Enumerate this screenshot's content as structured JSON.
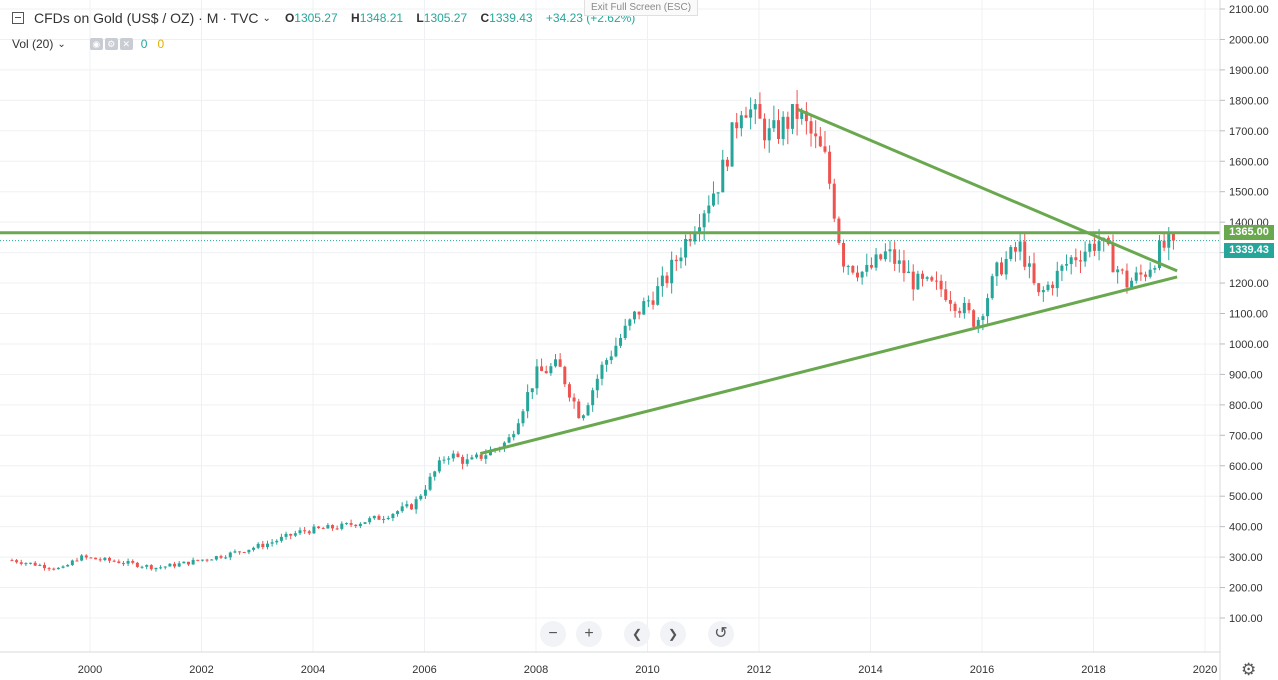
{
  "header": {
    "title": "CFDs on Gold (US$ / OZ) · M · TVC",
    "ohlc": {
      "o_key": "O",
      "o": "1305.27",
      "h_key": "H",
      "h": "1348.21",
      "l_key": "L",
      "l": "1305.27",
      "c_key": "C",
      "c": "1339.43",
      "change": "+34.23 (+2.62%)"
    }
  },
  "volume_legend": {
    "label": "Vol (20)",
    "value1": "0",
    "value2": "0"
  },
  "exit_fullscreen": "Exit Full Screen (ESC)",
  "nav": {
    "zoom_out": "−",
    "zoom_in": "+",
    "scroll_left": "❮",
    "scroll_right": "❯",
    "reset": "↺"
  },
  "price_tags": {
    "resistance": "1365.00",
    "last": "1339.43"
  },
  "colors": {
    "up": "#26a69a",
    "down": "#ef5350",
    "trendline": "#6aa84f",
    "axis": "#d5d8dc"
  },
  "icons": {
    "settings": "gear-icon",
    "collapse": "minus-square-icon"
  },
  "chart_data": {
    "type": "candlestick",
    "title": "CFDs on Gold (US$ / OZ)",
    "interval": "M",
    "ylim": [
      100,
      2100
    ],
    "yticks": [
      "100.00",
      "200.00",
      "300.00",
      "400.00",
      "500.00",
      "600.00",
      "700.00",
      "800.00",
      "900.00",
      "1000.00",
      "1100.00",
      "1200.00",
      "1300.00",
      "1400.00",
      "1500.00",
      "1600.00",
      "1700.00",
      "1800.00",
      "1900.00",
      "2000.00",
      "2100.00"
    ],
    "xticks": [
      "2000",
      "2002",
      "2004",
      "2006",
      "2008",
      "2010",
      "2012",
      "2014",
      "2016",
      "2018",
      "2020"
    ],
    "xlim": [
      1998.5,
      2020.3
    ],
    "series_yearly_path": [
      [
        1998.6,
        290
      ],
      [
        1999.5,
        260
      ],
      [
        1999.8,
        300
      ],
      [
        2000.5,
        285
      ],
      [
        2001.2,
        265
      ],
      [
        2001.7,
        280
      ],
      [
        2002.5,
        310
      ],
      [
        2003.2,
        345
      ],
      [
        2003.8,
        385
      ],
      [
        2004.5,
        400
      ],
      [
        2005.2,
        430
      ],
      [
        2005.8,
        470
      ],
      [
        2006.4,
        640
      ],
      [
        2006.8,
        610
      ],
      [
        2007.5,
        680
      ],
      [
        2008.0,
        900
      ],
      [
        2008.4,
        930
      ],
      [
        2008.8,
        760
      ],
      [
        2009.2,
        930
      ],
      [
        2009.8,
        1100
      ],
      [
        2010.3,
        1200
      ],
      [
        2010.8,
        1380
      ],
      [
        2011.3,
        1540
      ],
      [
        2011.7,
        1800
      ],
      [
        2012.2,
        1680
      ],
      [
        2012.7,
        1760
      ],
      [
        2013.2,
        1600
      ],
      [
        2013.5,
        1280
      ],
      [
        2013.9,
        1230
      ],
      [
        2014.3,
        1300
      ],
      [
        2014.8,
        1200
      ],
      [
        2015.3,
        1180
      ],
      [
        2015.9,
        1070
      ],
      [
        2016.3,
        1250
      ],
      [
        2016.7,
        1320
      ],
      [
        2017.0,
        1150
      ],
      [
        2017.6,
        1280
      ],
      [
        2018.1,
        1340
      ],
      [
        2018.6,
        1200
      ],
      [
        2018.9,
        1230
      ],
      [
        2019.2,
        1310
      ],
      [
        2019.45,
        1339.43
      ]
    ],
    "last_close": 1339.43,
    "annotations": {
      "horizontal_resistance": 1365.0,
      "descending_trendline": [
        [
          2012.7,
          1770
        ],
        [
          2019.5,
          1240
        ]
      ],
      "ascending_trendline": [
        [
          2007.0,
          640
        ],
        [
          2019.5,
          1220
        ]
      ]
    },
    "legend": "top-left",
    "grid": true
  }
}
